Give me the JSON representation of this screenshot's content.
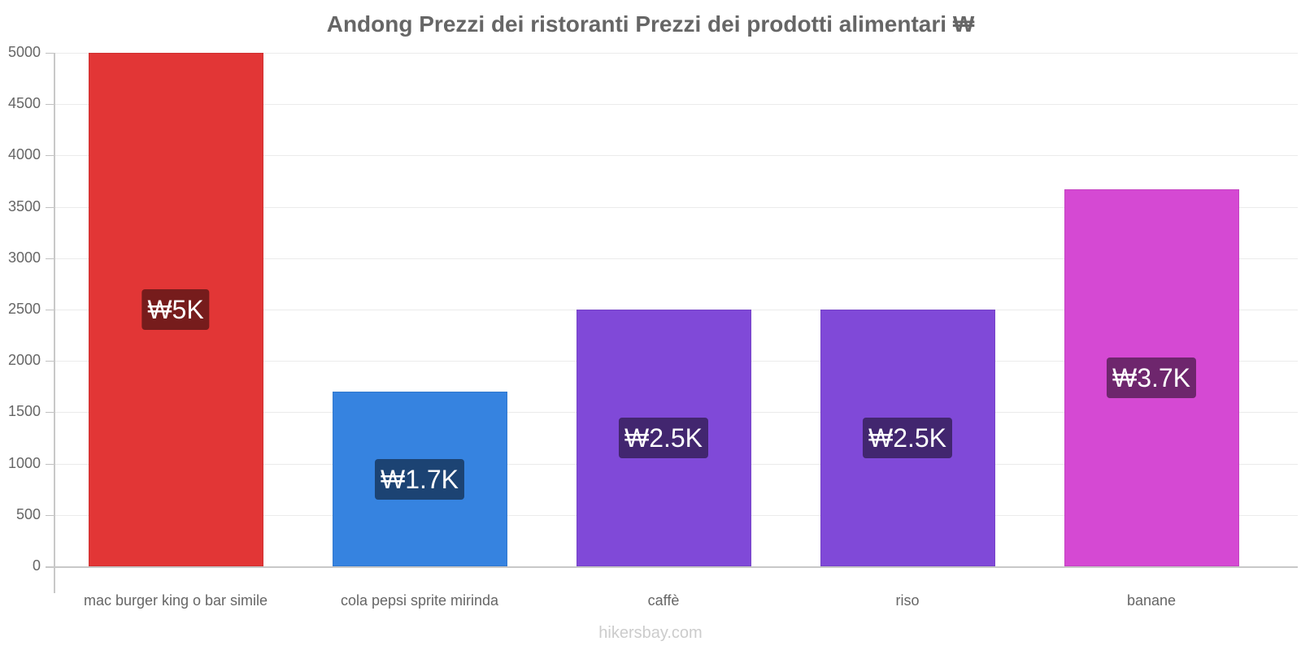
{
  "title": "Andong Prezzi dei ristoranti Prezzi dei prodotti alimentari ₩",
  "watermark": "hikersbay.com",
  "chart_data": {
    "type": "bar",
    "title": "Andong Prezzi dei ristoranti Prezzi dei prodotti alimentari ₩",
    "xlabel": "",
    "ylabel": "",
    "ylim": [
      0,
      5000
    ],
    "yticks": [
      0,
      500,
      1000,
      1500,
      2000,
      2500,
      3000,
      3500,
      4000,
      4500,
      5000
    ],
    "grid": true,
    "legend": null,
    "categories": [
      "mac burger king o bar simile",
      "cola pepsi sprite mirinda",
      "caffè",
      "riso",
      "banane"
    ],
    "values": [
      5000,
      1700,
      2500,
      2500,
      3670
    ],
    "data_labels": [
      "₩5K",
      "₩1.7K",
      "₩2.5K",
      "₩2.5K",
      "₩3.7K"
    ],
    "colors": [
      "#e23636",
      "#3683e0",
      "#8049d8",
      "#8049d8",
      "#d549d3"
    ],
    "label_colors": [
      "#761c1c",
      "#1c4373",
      "#42266f",
      "#42266f",
      "#6e266d"
    ]
  }
}
